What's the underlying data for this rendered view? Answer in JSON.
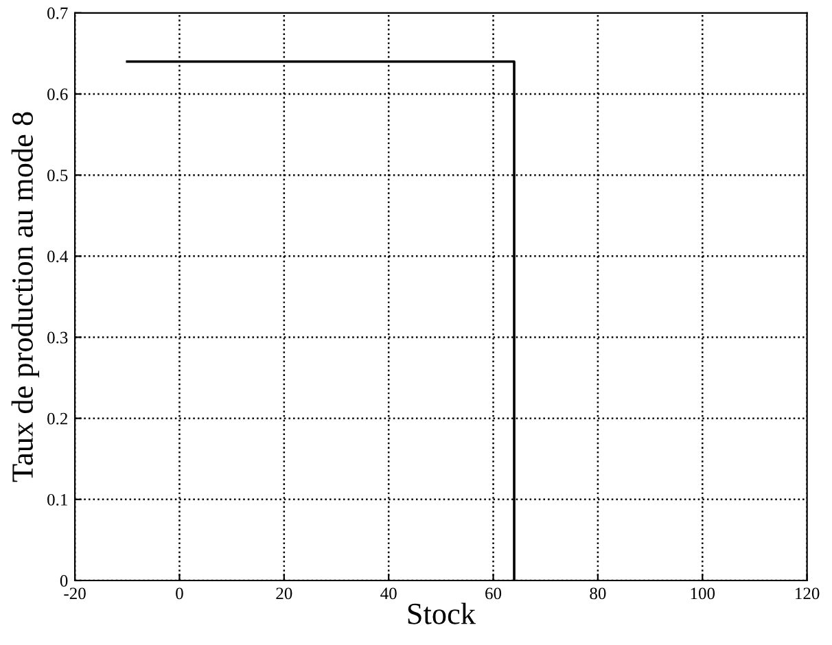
{
  "chart_data": {
    "type": "step",
    "xlabel": "Stock",
    "ylabel": "Taux de production au mode 8",
    "x": [
      -10,
      64
    ],
    "series": [
      {
        "color": "#000000",
        "values": [
          0.64,
          0
        ]
      }
    ],
    "xlim": [
      -20,
      120
    ],
    "xticks": [
      -20,
      0,
      20,
      40,
      60,
      80,
      100,
      120
    ],
    "ylim": [
      0,
      0.7
    ],
    "yticks": [
      0,
      0.1,
      0.2,
      0.3,
      0.4,
      0.5,
      0.6,
      0.7
    ],
    "grid": true,
    "line_style": "solid",
    "marker": "none"
  }
}
